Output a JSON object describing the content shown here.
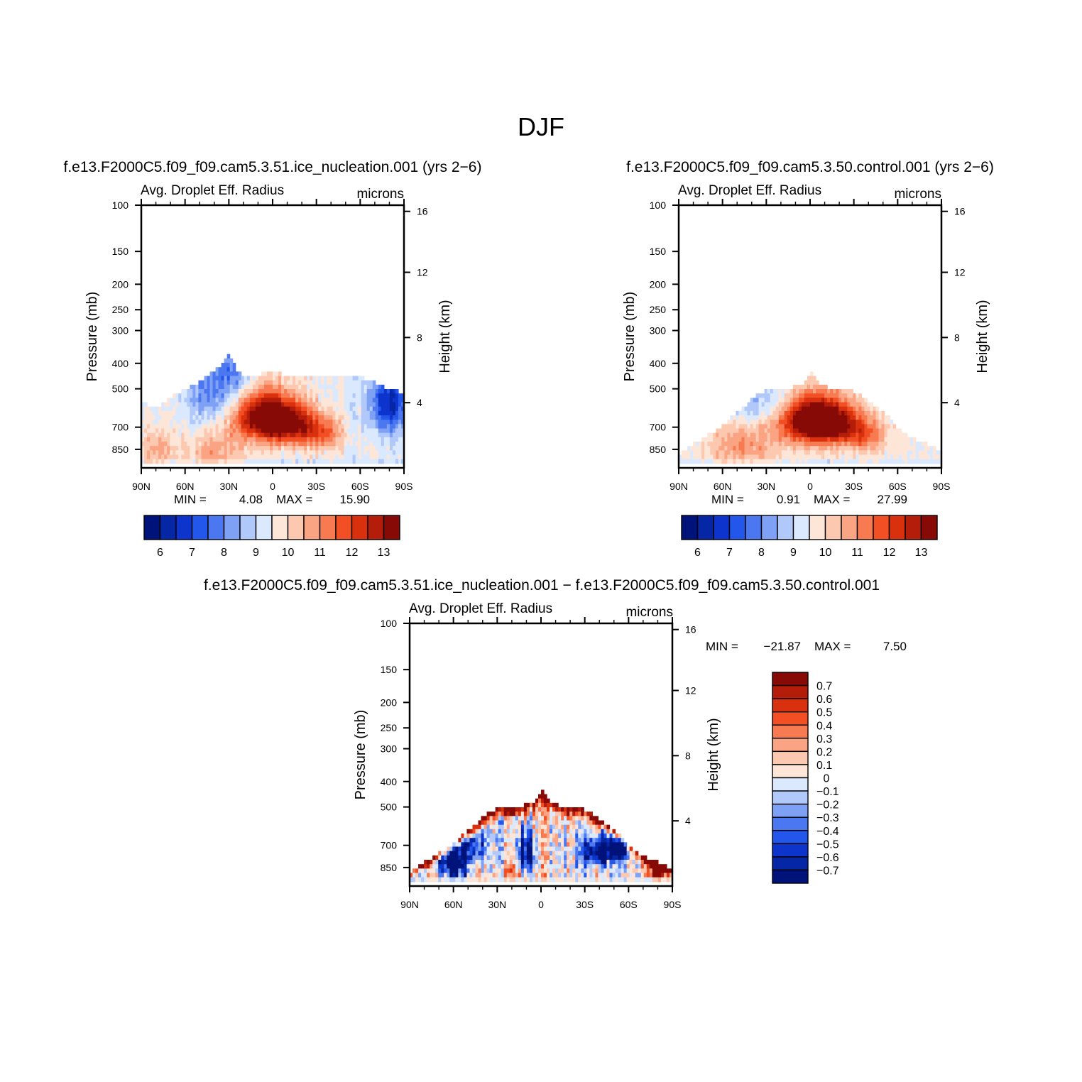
{
  "figure": {
    "title": "DJF"
  },
  "palette": {
    "positive_12": [
      "#fde9df",
      "#fcd0bc",
      "#fbb69a",
      "#f99a77",
      "#f77d55",
      "#f45f33",
      "#f04a1c",
      "#e03212",
      "#cb230c",
      "#b5180b",
      "#9a0d08",
      "#800000"
    ],
    "negative_12": [
      "#dcebfe",
      "#c4dcfd",
      "#a9c8fb",
      "#8bb0f8",
      "#6c96f5",
      "#4d7bf2",
      "#3463ef",
      "#204fe9",
      "#1540d2",
      "#0c33b2",
      "#062690",
      "#00156e"
    ],
    "colorbar_16": [
      "#00137a",
      "#0526a5",
      "#0d34cc",
      "#2356ea",
      "#4b77f0",
      "#7ea1f5",
      "#b0c9fa",
      "#dbe9fe",
      "#fde6d8",
      "#fcc8b0",
      "#fba483",
      "#f87a50",
      "#f24f24",
      "#d9300e",
      "#b41d0a",
      "#870a06"
    ],
    "diff_colorbar_16": [
      "#00137a",
      "#0526a5",
      "#0d34cc",
      "#2356ea",
      "#4b77f0",
      "#7ea1f5",
      "#b0c9fa",
      "#dbe9fe",
      "#fde6d8",
      "#fcc8b0",
      "#fba483",
      "#f87a50",
      "#f24f24",
      "#d9300e",
      "#b41d0a",
      "#870a06"
    ]
  },
  "chart_data": [
    {
      "type": "heatmap",
      "case": "f.e13.F2000C5.f09_f09.cam5.3.51.ice_nucleation.001  (yrs  2−6)",
      "title": "Avg.  Droplet  Eff.  Radius",
      "units": "microns",
      "ylabel": "Pressure  (mb)",
      "ylabel_right": "Height  (km)",
      "x_ticks": [
        "90N",
        "60N",
        "30N",
        "0",
        "30S",
        "60S",
        "90S"
      ],
      "x_range": [
        90,
        -90
      ],
      "y_ticks": [
        "100",
        "150",
        "200",
        "250",
        "300",
        "400",
        "500",
        "700",
        "850"
      ],
      "y_tick_values": [
        100,
        150,
        200,
        250,
        300,
        400,
        500,
        700,
        850
      ],
      "y_range": [
        100,
        1000
      ],
      "y_scale": "log",
      "height_ticks": [
        "16",
        "12",
        "8",
        "4"
      ],
      "height_tick_values": [
        16,
        12,
        8,
        4
      ],
      "min_label": "MIN  =",
      "min_value": "4.08",
      "max_label": "MAX  =",
      "max_value": "15.90",
      "colorbar_labels": [
        "6",
        "7",
        "8",
        "9",
        "10",
        "11",
        "12",
        "13"
      ],
      "colorbar_levels": [
        5.5,
        6,
        6.5,
        7,
        7.5,
        8,
        8.5,
        9,
        9.5,
        10,
        10.5,
        11,
        11.5,
        12,
        12.5,
        13,
        13.5
      ],
      "field_model": {
        "mode": "abs",
        "base": 9.4,
        "cloud_top_p": [
          [
            90,
            560
          ],
          [
            80,
            590
          ],
          [
            70,
            540
          ],
          [
            60,
            500
          ],
          [
            50,
            470
          ],
          [
            40,
            425
          ],
          [
            35,
            400
          ],
          [
            30,
            360
          ],
          [
            25,
            420
          ],
          [
            20,
            455
          ],
          [
            10,
            440
          ],
          [
            0,
            430
          ],
          [
            -10,
            445
          ],
          [
            -20,
            440
          ],
          [
            -30,
            445
          ],
          [
            -40,
            445
          ],
          [
            -50,
            445
          ],
          [
            -60,
            450
          ],
          [
            -70,
            470
          ],
          [
            -80,
            500
          ],
          [
            -90,
            520
          ]
        ],
        "blobs": [
          {
            "lat": 5,
            "p": 640,
            "sl": 22,
            "sp": 140,
            "a": 4.6
          },
          {
            "lat": -15,
            "p": 690,
            "sl": 18,
            "sp": 120,
            "a": 2.4
          },
          {
            "lat": -35,
            "p": 740,
            "sl": 14,
            "sp": 110,
            "a": 1.8
          },
          {
            "lat": 40,
            "p": 860,
            "sl": 20,
            "sp": 150,
            "a": 1.3
          },
          {
            "lat": 80,
            "p": 860,
            "sl": 12,
            "sp": 170,
            "a": 1.2
          },
          {
            "lat": 40,
            "p": 510,
            "sl": 20,
            "sp": 160,
            "a": -1.6
          },
          {
            "lat": -80,
            "p": 570,
            "sl": 14,
            "sp": 150,
            "a": -3.0
          },
          {
            "lat": 25,
            "p": 420,
            "sl": 12,
            "sp": 90,
            "a": -1.0
          }
        ],
        "noise": 0.5,
        "seed": 11
      }
    },
    {
      "type": "heatmap",
      "case": "f.e13.F2000C5.f09_f09.cam5.3.50.control.001  (yrs  2−6)",
      "title": "Avg.  Droplet  Eff.  Radius",
      "units": "microns",
      "ylabel": "Pressure  (mb)",
      "ylabel_right": "Height  (km)",
      "x_ticks": [
        "90N",
        "60N",
        "30N",
        "0",
        "30S",
        "60S",
        "90S"
      ],
      "x_range": [
        90,
        -90
      ],
      "y_ticks": [
        "100",
        "150",
        "200",
        "250",
        "300",
        "400",
        "500",
        "700",
        "850"
      ],
      "y_tick_values": [
        100,
        150,
        200,
        250,
        300,
        400,
        500,
        700,
        850
      ],
      "y_range": [
        100,
        1000
      ],
      "y_scale": "log",
      "height_ticks": [
        "16",
        "12",
        "8",
        "4"
      ],
      "height_tick_values": [
        16,
        12,
        8,
        4
      ],
      "min_label": "MIN  =",
      "min_value": "0.91",
      "max_label": "MAX  =",
      "max_value": "27.99",
      "colorbar_labels": [
        "6",
        "7",
        "8",
        "9",
        "10",
        "11",
        "12",
        "13"
      ],
      "colorbar_levels": [
        5.5,
        6,
        6.5,
        7,
        7.5,
        8,
        8.5,
        9,
        9.5,
        10,
        10.5,
        11,
        11.5,
        12,
        12.5,
        13,
        13.5
      ],
      "field_model": {
        "mode": "abs",
        "base": 9.6,
        "cloud_top_p": [
          [
            90,
            890
          ],
          [
            85,
            850
          ],
          [
            75,
            780
          ],
          [
            65,
            720
          ],
          [
            55,
            650
          ],
          [
            45,
            580
          ],
          [
            35,
            520
          ],
          [
            25,
            500
          ],
          [
            15,
            500
          ],
          [
            5,
            480
          ],
          [
            0,
            430
          ],
          [
            -5,
            470
          ],
          [
            -15,
            500
          ],
          [
            -25,
            500
          ],
          [
            -35,
            530
          ],
          [
            -45,
            580
          ],
          [
            -55,
            650
          ],
          [
            -62,
            720
          ],
          [
            -70,
            770
          ],
          [
            -78,
            800
          ],
          [
            -85,
            840
          ],
          [
            -90,
            880
          ]
        ],
        "blobs": [
          {
            "lat": 0,
            "p": 650,
            "sl": 22,
            "sp": 140,
            "a": 4.8
          },
          {
            "lat": -20,
            "p": 690,
            "sl": 18,
            "sp": 120,
            "a": 2.6
          },
          {
            "lat": -40,
            "p": 760,
            "sl": 12,
            "sp": 100,
            "a": 1.6
          },
          {
            "lat": 45,
            "p": 820,
            "sl": 22,
            "sp": 160,
            "a": 1.4
          },
          {
            "lat": 30,
            "p": 560,
            "sl": 30,
            "sp": 120,
            "a": -1.2
          }
        ],
        "noise": 0.4,
        "seed": 23
      }
    },
    {
      "type": "heatmap",
      "case": "f.e13.F2000C5.f09_f09.cam5.3.51.ice_nucleation.001  −  f.e13.F2000C5.f09_f09.cam5.3.50.control.001",
      "title": "Avg.  Droplet  Eff.  Radius",
      "units": "microns",
      "ylabel": "Pressure  (mb)",
      "ylabel_right": "Height  (km)",
      "x_ticks": [
        "90N",
        "60N",
        "30N",
        "0",
        "30S",
        "60S",
        "90S"
      ],
      "x_range": [
        90,
        -90
      ],
      "y_ticks": [
        "100",
        "150",
        "200",
        "250",
        "300",
        "400",
        "500",
        "700",
        "850"
      ],
      "y_tick_values": [
        100,
        150,
        200,
        250,
        300,
        400,
        500,
        700,
        850
      ],
      "y_range": [
        100,
        1000
      ],
      "y_scale": "log",
      "height_ticks": [
        "16",
        "12",
        "8",
        "4"
      ],
      "height_tick_values": [
        16,
        12,
        8,
        4
      ],
      "min_label": "MIN  =",
      "min_value": "−21.87",
      "max_label": "MAX  =",
      "max_value": "7.50",
      "colorbar_labels": [
        "0.7",
        "0.6",
        "0.5",
        "0.4",
        "0.3",
        "0.2",
        "0.1",
        "0",
        "−0.1",
        "−0.2",
        "−0.3",
        "−0.4",
        "−0.5",
        "−0.6",
        "−0.7"
      ],
      "colorbar_levels": [
        -0.8,
        -0.7,
        -0.6,
        -0.5,
        -0.4,
        -0.3,
        -0.2,
        -0.1,
        0,
        0.1,
        0.2,
        0.3,
        0.4,
        0.5,
        0.6,
        0.7,
        0.8
      ],
      "field_model": {
        "mode": "diff",
        "base": 0,
        "cloud_top_p": [
          [
            90,
            890
          ],
          [
            85,
            850
          ],
          [
            75,
            780
          ],
          [
            65,
            720
          ],
          [
            55,
            650
          ],
          [
            45,
            580
          ],
          [
            35,
            520
          ],
          [
            25,
            500
          ],
          [
            15,
            500
          ],
          [
            5,
            480
          ],
          [
            0,
            430
          ],
          [
            -5,
            470
          ],
          [
            -15,
            500
          ],
          [
            -25,
            500
          ],
          [
            -35,
            530
          ],
          [
            -45,
            580
          ],
          [
            -55,
            650
          ],
          [
            -62,
            720
          ],
          [
            -70,
            770
          ],
          [
            -78,
            800
          ],
          [
            -85,
            840
          ],
          [
            -90,
            880
          ]
        ],
        "top_band": {
          "width": 60,
          "value": 0.9
        },
        "blobs": [
          {
            "lat": 60,
            "p": 800,
            "sl": 10,
            "sp": 120,
            "a": -1.2
          },
          {
            "lat": 45,
            "p": 700,
            "sl": 8,
            "sp": 90,
            "a": -0.7
          },
          {
            "lat": -40,
            "p": 740,
            "sl": 12,
            "sp": 90,
            "a": -1.0
          },
          {
            "lat": -55,
            "p": 700,
            "sl": 8,
            "sp": 80,
            "a": -0.9
          },
          {
            "lat": -80,
            "p": 850,
            "sl": 8,
            "sp": 100,
            "a": 1.1
          },
          {
            "lat": 10,
            "p": 760,
            "sl": 6,
            "sp": 120,
            "a": -0.8
          },
          {
            "lat": 20,
            "p": 880,
            "sl": 10,
            "sp": 90,
            "a": 0.3
          }
        ],
        "noise": 0.45,
        "seed": 37
      }
    }
  ]
}
